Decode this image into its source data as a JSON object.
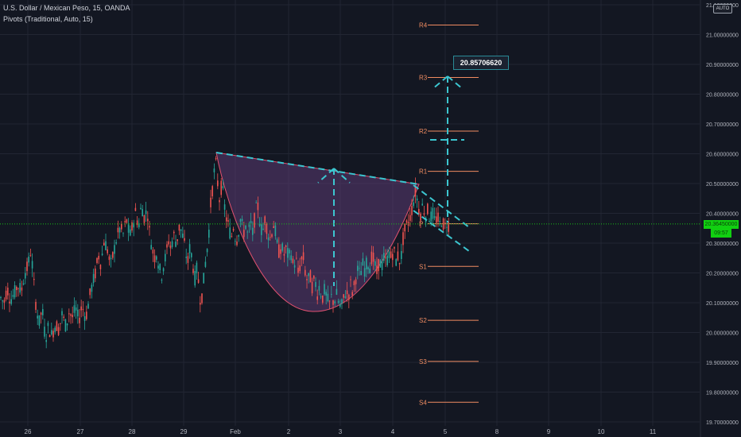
{
  "header": {
    "title": "U.S. Dollar / Mexican Peso, 15, OANDA",
    "indicator": "Pivots (Traditional, Auto, 15)"
  },
  "auto_button": "AUTO",
  "callout": {
    "text": "20.85706620"
  },
  "price_tag": "20.36450000",
  "time_tag": "09:57",
  "colors": {
    "background": "#131722",
    "grid": "#222633",
    "up": "#26a69a",
    "down": "#ef5350",
    "pivot": "#f08c61",
    "pattern_line": "#3cc6d0",
    "cup_fill": "#5b3a72",
    "cup_stroke": "#e0506f",
    "price_line": "#17c117"
  },
  "chart_data": {
    "type": "candlestick",
    "x_ticks": [
      "26",
      "27",
      "28",
      "29",
      "Feb",
      "2",
      "3",
      "4",
      "5",
      "8",
      "9",
      "10",
      "11"
    ],
    "y_ticks": [
      "21.10000000",
      "21.00000000",
      "20.90000000",
      "20.80000000",
      "20.70000000",
      "20.60000000",
      "20.50000000",
      "20.40000000",
      "20.30000000",
      "20.20000000",
      "20.10000000",
      "20.00000000",
      "19.90000000",
      "19.80000000",
      "19.70000000"
    ],
    "ylim": [
      19.69,
      21.12
    ],
    "pivots": [
      {
        "label": "R4",
        "value": 21.032
      },
      {
        "label": "R3",
        "value": 20.856
      },
      {
        "label": "R2",
        "value": 20.676
      },
      {
        "label": "R1",
        "value": 20.541
      },
      {
        "label": "P",
        "value": 20.365
      },
      {
        "label": "S1",
        "value": 20.222
      },
      {
        "label": "S2",
        "value": 20.041
      },
      {
        "label": "S3",
        "value": 19.903
      },
      {
        "label": "S4",
        "value": 19.766
      }
    ],
    "current_price": 20.3645,
    "target": 20.8570662,
    "price_path": [
      [
        0,
        20.12
      ],
      [
        5,
        20.1
      ],
      [
        9,
        20.15
      ],
      [
        13,
        20.11
      ],
      [
        18,
        20.13
      ],
      [
        22,
        20.16
      ],
      [
        27,
        20.14
      ],
      [
        31,
        20.2
      ],
      [
        35,
        20.22
      ],
      [
        39,
        20.28
      ],
      [
        42,
        20.18
      ],
      [
        45,
        20.1
      ],
      [
        49,
        20.03
      ],
      [
        53,
        20.08
      ],
      [
        57,
        19.98
      ],
      [
        61,
        20.02
      ],
      [
        65,
        19.99
      ],
      [
        70,
        20.03
      ],
      [
        74,
        20.01
      ],
      [
        78,
        20.06
      ],
      [
        83,
        20.02
      ],
      [
        87,
        20.07
      ],
      [
        91,
        20.05
      ],
      [
        95,
        20.08
      ],
      [
        99,
        20.04
      ],
      [
        103,
        20.09
      ],
      [
        108,
        20.05
      ],
      [
        112,
        20.11
      ],
      [
        116,
        20.16
      ],
      [
        120,
        20.2
      ],
      [
        124,
        20.26
      ],
      [
        127,
        20.23
      ],
      [
        131,
        20.31
      ],
      [
        135,
        20.28
      ],
      [
        139,
        20.22
      ],
      [
        143,
        20.27
      ],
      [
        147,
        20.32
      ],
      [
        151,
        20.35
      ],
      [
        155,
        20.33
      ],
      [
        159,
        20.38
      ],
      [
        163,
        20.32
      ],
      [
        167,
        20.36
      ],
      [
        171,
        20.41
      ],
      [
        174,
        20.35
      ],
      [
        178,
        20.43
      ],
      [
        182,
        20.38
      ],
      [
        185,
        20.42
      ],
      [
        188,
        20.34
      ],
      [
        191,
        20.29
      ],
      [
        194,
        20.25
      ],
      [
        197,
        20.27
      ],
      [
        200,
        20.22
      ],
      [
        203,
        20.19
      ],
      [
        206,
        20.23
      ],
      [
        209,
        20.26
      ],
      [
        212,
        20.31
      ],
      [
        215,
        20.28
      ],
      [
        218,
        20.33
      ],
      [
        222,
        20.3
      ],
      [
        226,
        20.36
      ],
      [
        230,
        20.32
      ],
      [
        233,
        20.28
      ],
      [
        236,
        20.23
      ],
      [
        239,
        20.29
      ],
      [
        242,
        20.24
      ],
      [
        245,
        20.18
      ],
      [
        248,
        20.22
      ],
      [
        251,
        20.13
      ],
      [
        253,
        20.1
      ],
      [
        256,
        20.17
      ],
      [
        259,
        20.25
      ],
      [
        262,
        20.31
      ],
      [
        265,
        20.43
      ],
      [
        268,
        20.5
      ],
      [
        271,
        20.58
      ],
      [
        273,
        20.52
      ],
      [
        276,
        20.45
      ],
      [
        279,
        20.5
      ],
      [
        282,
        20.43
      ],
      [
        285,
        20.38
      ],
      [
        288,
        20.35
      ],
      [
        291,
        20.32
      ],
      [
        294,
        20.36
      ],
      [
        297,
        20.3
      ],
      [
        300,
        20.34
      ],
      [
        303,
        20.39
      ],
      [
        306,
        20.33
      ],
      [
        309,
        20.36
      ],
      [
        312,
        20.32
      ],
      [
        315,
        20.37
      ],
      [
        318,
        20.33
      ],
      [
        321,
        20.4
      ],
      [
        324,
        20.43
      ],
      [
        327,
        20.37
      ],
      [
        330,
        20.33
      ],
      [
        333,
        20.38
      ],
      [
        336,
        20.35
      ],
      [
        339,
        20.31
      ],
      [
        342,
        20.34
      ],
      [
        345,
        20.37
      ],
      [
        348,
        20.3
      ],
      [
        351,
        20.27
      ],
      [
        354,
        20.29
      ],
      [
        357,
        20.26
      ],
      [
        360,
        20.28
      ],
      [
        363,
        20.25
      ],
      [
        366,
        20.27
      ],
      [
        369,
        20.22
      ],
      [
        372,
        20.25
      ],
      [
        375,
        20.2
      ],
      [
        378,
        20.23
      ],
      [
        381,
        20.26
      ],
      [
        384,
        20.2
      ],
      [
        387,
        20.17
      ],
      [
        390,
        20.19
      ],
      [
        393,
        20.15
      ],
      [
        396,
        20.18
      ],
      [
        399,
        20.13
      ],
      [
        402,
        20.16
      ],
      [
        405,
        20.11
      ],
      [
        408,
        20.14
      ],
      [
        411,
        20.12
      ],
      [
        414,
        20.09
      ],
      [
        417,
        20.12
      ],
      [
        420,
        20.1
      ],
      [
        423,
        20.13
      ],
      [
        426,
        20.1
      ],
      [
        429,
        20.08
      ],
      [
        432,
        20.11
      ],
      [
        435,
        20.14
      ],
      [
        438,
        20.12
      ],
      [
        441,
        20.16
      ],
      [
        444,
        20.13
      ],
      [
        447,
        20.18
      ],
      [
        450,
        20.21
      ],
      [
        453,
        20.19
      ],
      [
        456,
        20.23
      ],
      [
        459,
        20.21
      ],
      [
        462,
        20.24
      ],
      [
        465,
        20.22
      ],
      [
        468,
        20.26
      ],
      [
        471,
        20.23
      ],
      [
        474,
        20.2
      ],
      [
        477,
        20.24
      ],
      [
        480,
        20.22
      ],
      [
        483,
        20.25
      ],
      [
        486,
        20.23
      ],
      [
        489,
        20.27
      ],
      [
        492,
        20.25
      ],
      [
        495,
        20.28
      ],
      [
        498,
        20.24
      ],
      [
        501,
        20.26
      ],
      [
        504,
        20.23
      ],
      [
        506,
        20.3
      ],
      [
        509,
        20.34
      ],
      [
        512,
        20.36
      ],
      [
        515,
        20.38
      ],
      [
        517,
        20.4
      ],
      [
        520,
        20.44
      ],
      [
        523,
        20.48
      ],
      [
        526,
        20.42
      ],
      [
        529,
        20.4
      ],
      [
        532,
        20.43
      ],
      [
        535,
        20.39
      ],
      [
        538,
        20.41
      ],
      [
        541,
        20.38
      ],
      [
        544,
        20.4
      ],
      [
        547,
        20.37
      ],
      [
        550,
        20.39
      ],
      [
        553,
        20.36
      ],
      [
        556,
        20.38
      ],
      [
        559,
        20.35
      ],
      [
        562,
        20.37
      ],
      [
        565,
        20.36
      ]
    ]
  }
}
